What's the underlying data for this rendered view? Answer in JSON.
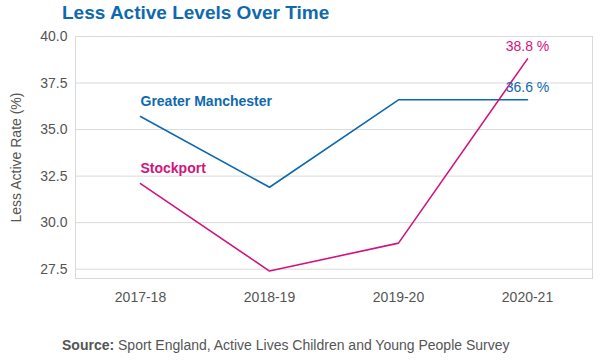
{
  "chart_data": {
    "type": "line",
    "title": "Less Active Levels Over Time",
    "y_label": "Less Active Rate (%)",
    "caption_label": "Source:",
    "caption": "Sport England, Active Lives Children and Young People Survey",
    "categories": [
      "2017-18",
      "2018-19",
      "2019-20",
      "2020-21"
    ],
    "series": [
      {
        "name": "Greater Manchester",
        "color": "#0f69af",
        "values": [
          35.7,
          31.9,
          36.6,
          36.6
        ]
      },
      {
        "name": "Stockport",
        "color": "#d1147d",
        "values": [
          32.1,
          27.4,
          28.9,
          38.8
        ]
      }
    ],
    "annotations": [
      {
        "series": "Stockport",
        "category": "2020-21",
        "text": "38.8 %"
      },
      {
        "series": "Greater Manchester",
        "category": "2020-21",
        "text": "36.6 %"
      }
    ],
    "ylim": [
      27,
      40
    ],
    "yticks": [
      27.5,
      {
        "value": 30,
        "label": "30.0"
      },
      32.5,
      {
        "value": 35,
        "label": "35.0"
      },
      37.5,
      {
        "value": 40,
        "label": "40.0"
      }
    ],
    "grid": true
  }
}
